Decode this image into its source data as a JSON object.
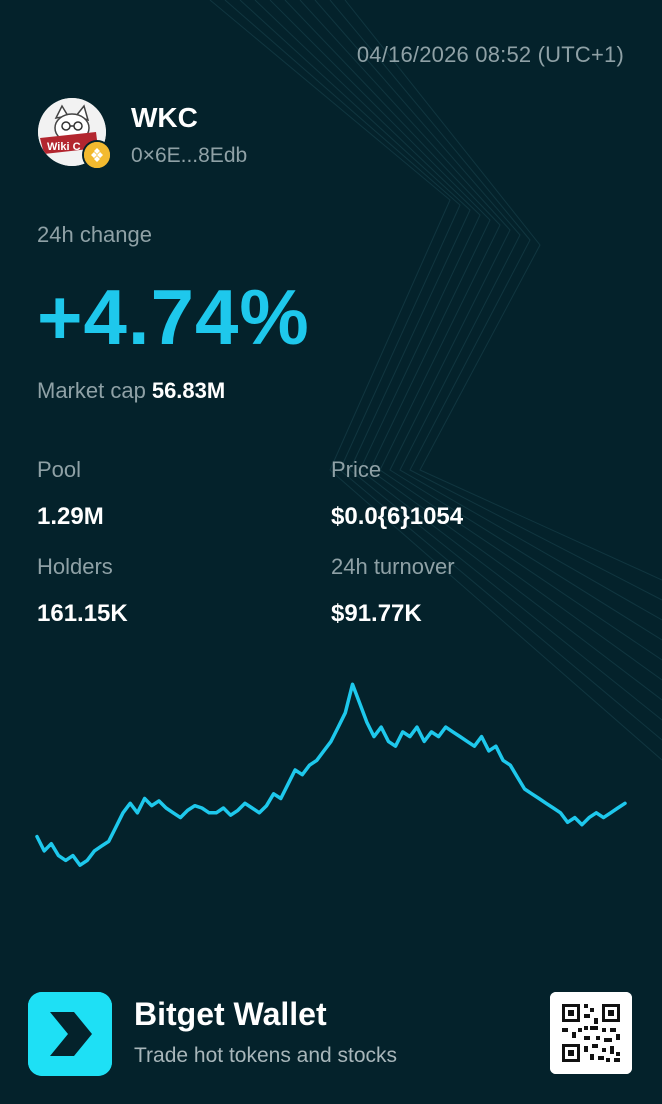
{
  "header": {
    "timestamp": "04/16/2026 08:52 (UTC+1)"
  },
  "token": {
    "name": "WKC",
    "address": "0×6E...8Edb",
    "avatar_icon": "wikicat-logo-icon",
    "avatar_text": "Wiki C",
    "chain_icon": "bnb-chain-icon"
  },
  "change": {
    "label": "24h change",
    "value": "+4.74%"
  },
  "market_cap": {
    "label": "Market cap",
    "value": "56.83M"
  },
  "stats": {
    "pool": {
      "label": "Pool",
      "value": "1.29M"
    },
    "price": {
      "label": "Price",
      "value": "$0.0{6}1054"
    },
    "holders": {
      "label": "Holders",
      "value": "161.15K"
    },
    "turnover": {
      "label": "24h turnover",
      "value": "$91.77K"
    }
  },
  "chart_data": {
    "type": "line",
    "series": [
      {
        "values": [
          0.3,
          0.24,
          0.27,
          0.22,
          0.2,
          0.22,
          0.18,
          0.2,
          0.24,
          0.26,
          0.28,
          0.34,
          0.4,
          0.44,
          0.4,
          0.46,
          0.43,
          0.45,
          0.42,
          0.4,
          0.38,
          0.41,
          0.43,
          0.42,
          0.4,
          0.4,
          0.42,
          0.39,
          0.41,
          0.44,
          0.42,
          0.4,
          0.43,
          0.48,
          0.46,
          0.52,
          0.58,
          0.56,
          0.6,
          0.62,
          0.66,
          0.7,
          0.76,
          0.82,
          0.94,
          0.86,
          0.78,
          0.72,
          0.76,
          0.7,
          0.68,
          0.74,
          0.72,
          0.76,
          0.7,
          0.74,
          0.72,
          0.76,
          0.74,
          0.72,
          0.7,
          0.68,
          0.72,
          0.66,
          0.68,
          0.62,
          0.6,
          0.55,
          0.5,
          0.48,
          0.46,
          0.44,
          0.42,
          0.4,
          0.36,
          0.38,
          0.35,
          0.38,
          0.4,
          0.38,
          0.4,
          0.42,
          0.44
        ]
      }
    ],
    "colors": {
      "line": "#1ec8ec"
    }
  },
  "footer": {
    "brand": "Bitget Wallet",
    "tagline": "Trade hot tokens and stocks",
    "logo_icon": "bitget-wallet-logo-icon",
    "qr_icon": "qr-code-icon"
  },
  "colors": {
    "background": "#04222b",
    "accent": "#1ec8ec",
    "muted_text": "#8fa1a6"
  }
}
